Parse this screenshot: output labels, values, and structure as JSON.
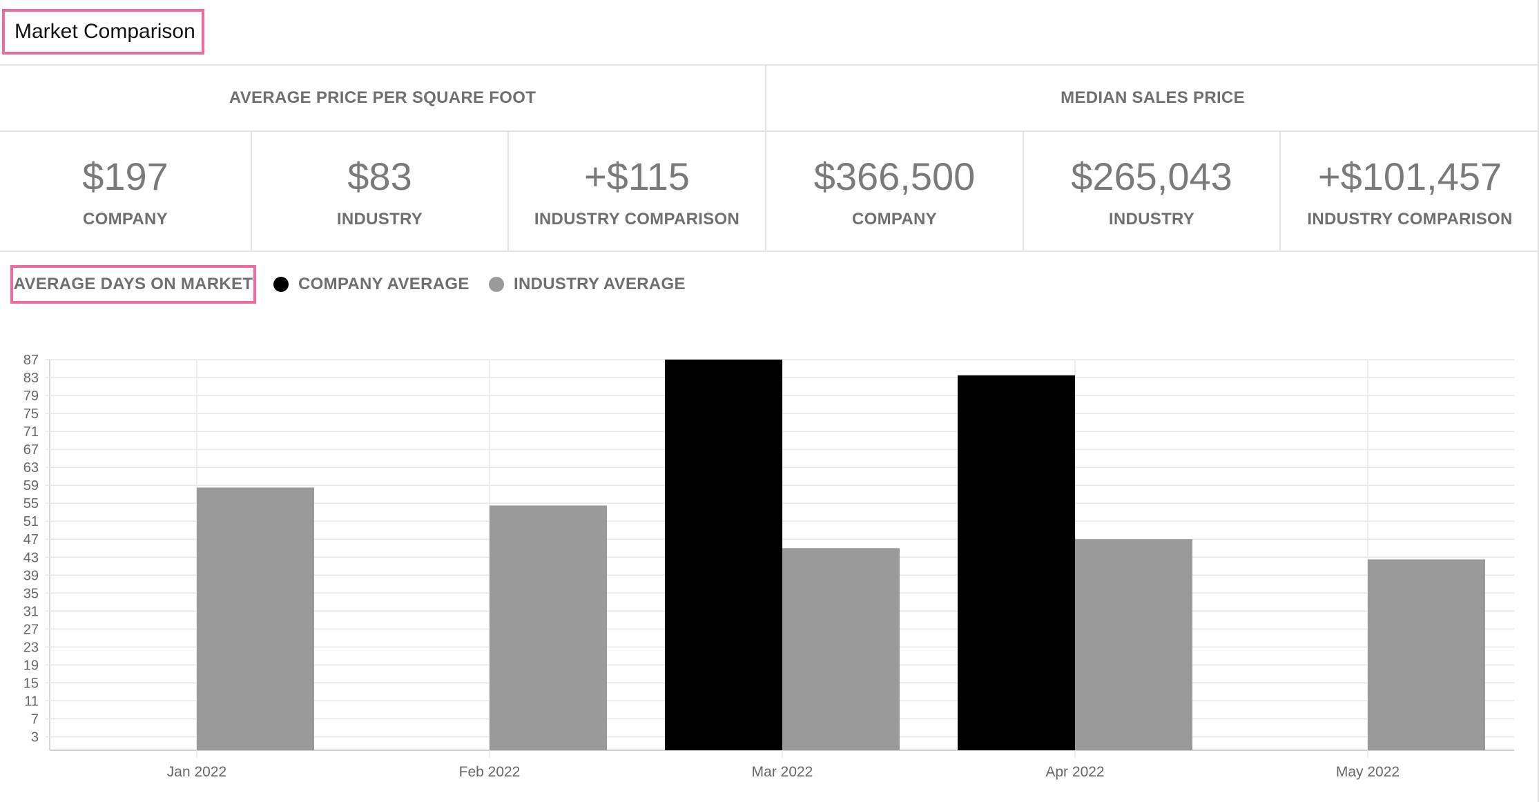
{
  "header": {
    "title": "Market Comparison"
  },
  "price_per_sqft": {
    "heading": "AVERAGE PRICE PER SQUARE FOOT",
    "stats": [
      {
        "value": "$197",
        "label": "COMPANY"
      },
      {
        "value": "$83",
        "label": "INDUSTRY"
      },
      {
        "value": "+$115",
        "label": "INDUSTRY COMPARISON"
      }
    ]
  },
  "median_sales": {
    "heading": "MEDIAN SALES PRICE",
    "stats": [
      {
        "value": "$366,500",
        "label": "COMPANY"
      },
      {
        "value": "$265,043",
        "label": "INDUSTRY"
      },
      {
        "value": "+$101,457",
        "label": "INDUSTRY COMPARISON"
      }
    ]
  },
  "days_on_market": {
    "heading": "AVERAGE DAYS ON MARKET",
    "legend": [
      {
        "label": "COMPANY AVERAGE",
        "color": "#000000"
      },
      {
        "label": "INDUSTRY AVERAGE",
        "color": "#9a9a9a"
      }
    ]
  },
  "chart_data": {
    "type": "bar",
    "categories": [
      "Jan 2022",
      "Feb 2022",
      "Mar 2022",
      "Apr 2022",
      "May 2022"
    ],
    "series": [
      {
        "name": "COMPANY AVERAGE",
        "color": "#000000",
        "values": [
          0,
          0,
          87,
          83.5,
          0
        ]
      },
      {
        "name": "INDUSTRY AVERAGE",
        "color": "#9a9a9a",
        "values": [
          58.5,
          54.5,
          45,
          47,
          42.5
        ]
      }
    ],
    "yticks": [
      3,
      7,
      11,
      15,
      19,
      23,
      27,
      31,
      35,
      39,
      43,
      47,
      51,
      55,
      59,
      63,
      67,
      71,
      75,
      79,
      83,
      87
    ],
    "ylim": [
      0,
      87
    ],
    "grid": true,
    "xlabel": "",
    "ylabel": "",
    "title": ""
  }
}
